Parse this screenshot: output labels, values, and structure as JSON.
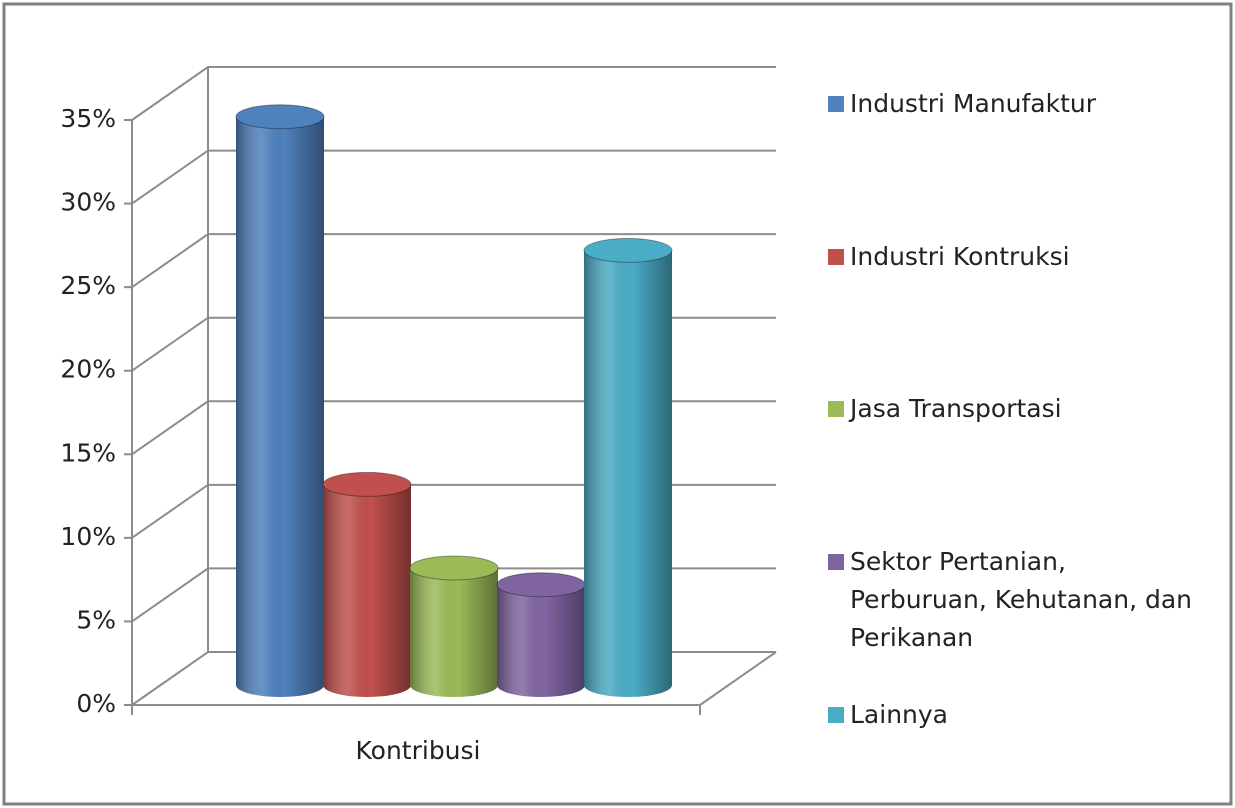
{
  "chart_data": {
    "type": "bar3d",
    "categories": [
      "Kontribusi"
    ],
    "series": [
      {
        "name": "Industri Manufaktur",
        "color": "#4f81bd",
        "values": [
          34
        ]
      },
      {
        "name": "Industri Kontruksi",
        "color": "#c0504d",
        "values": [
          12
        ]
      },
      {
        "name": "Jasa Transportasi",
        "color": "#9bbb59",
        "values": [
          7
        ]
      },
      {
        "name": "Sektor Pertanian, Perburuan, Kehutanan, dan Perikanan",
        "color": "#8064a2",
        "values": [
          6
        ]
      },
      {
        "name": "Lainnya",
        "color": "#4bacc6",
        "values": [
          26
        ]
      }
    ],
    "ylim": [
      0,
      35
    ],
    "yticks": [
      {
        "value": 0,
        "label": "0%"
      },
      {
        "value": 5,
        "label": "5%"
      },
      {
        "value": 10,
        "label": "10%"
      },
      {
        "value": 15,
        "label": "15%"
      },
      {
        "value": 20,
        "label": "20%"
      },
      {
        "value": 25,
        "label": "25%"
      },
      {
        "value": 30,
        "label": "30%"
      },
      {
        "value": 35,
        "label": "35%"
      }
    ],
    "grid": true,
    "legend": "right"
  }
}
